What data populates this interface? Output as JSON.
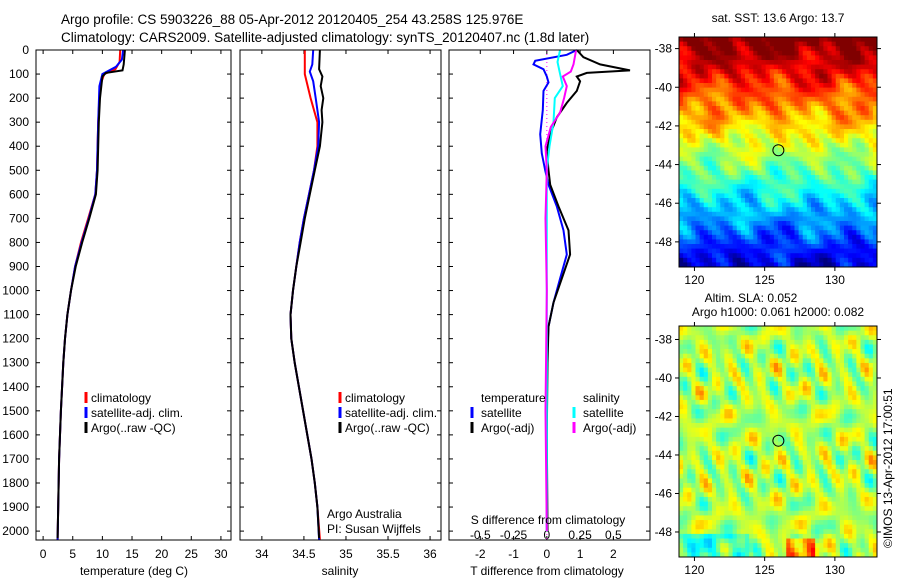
{
  "title_line1": "Argo profile: CS 5903226_88 05-Apr-2012 20120405_254 43.258S 125.976E",
  "title_line2": "Climatology: CARS2009. Satellite-adjusted climatology: synTS_20120407.nc (1.8d later)",
  "colors": {
    "climatology": "#ff0000",
    "satellite": "#0000ff",
    "argo": "#000000",
    "sal_satellite": "#00ffff",
    "sal_argo": "#ff00ff"
  },
  "chart_data": [
    {
      "type": "line",
      "xlabel": "temperature (deg C)",
      "ylabel": "",
      "xlim": [
        -1.2,
        31.7
      ],
      "ylim": [
        2037,
        0
      ],
      "xticks": [
        "0",
        "5",
        "10",
        "15",
        "20",
        "25",
        "30"
      ],
      "xtick_values": [
        0,
        5,
        10,
        15,
        20,
        25,
        30
      ],
      "yticks": [
        "0",
        "100",
        "200",
        "300",
        "400",
        "500",
        "600",
        "700",
        "800",
        "900",
        "1000",
        "1100",
        "1200",
        "1300",
        "1400",
        "1500",
        "1600",
        "1700",
        "1800",
        "1900",
        "2000"
      ],
      "legend": [
        "climatology",
        "satellite-adj. clim.",
        "Argo(..raw -QC)"
      ],
      "series": [
        {
          "name": "climatology",
          "color": "#ff0000",
          "points": [
            [
              0,
              13.0
            ],
            [
              50,
              12.9
            ],
            [
              80,
              12.2
            ],
            [
              100,
              10.3
            ],
            [
              150,
              9.6
            ],
            [
              300,
              9.3
            ],
            [
              500,
              9.1
            ],
            [
              600,
              8.8
            ],
            [
              700,
              7.6
            ],
            [
              800,
              6.4
            ],
            [
              900,
              5.4
            ],
            [
              1000,
              4.7
            ],
            [
              1100,
              4.1
            ],
            [
              1200,
              3.7
            ],
            [
              1300,
              3.4
            ],
            [
              1500,
              3.0
            ],
            [
              1700,
              2.7
            ],
            [
              1900,
              2.55
            ],
            [
              2035,
              2.45
            ]
          ]
        },
        {
          "name": "satellite-adj. clim.",
          "color": "#0000ff",
          "points": [
            [
              0,
              13.5
            ],
            [
              40,
              13.3
            ],
            [
              70,
              12.3
            ],
            [
              100,
              10.0
            ],
            [
              150,
              9.5
            ],
            [
              300,
              9.3
            ],
            [
              500,
              9.1
            ],
            [
              600,
              8.8
            ],
            [
              700,
              7.7
            ],
            [
              800,
              6.5
            ],
            [
              900,
              5.4
            ],
            [
              1000,
              4.7
            ],
            [
              1100,
              4.1
            ],
            [
              1200,
              3.7
            ],
            [
              1300,
              3.4
            ],
            [
              1500,
              3.0
            ],
            [
              1700,
              2.7
            ],
            [
              1900,
              2.55
            ],
            [
              2035,
              2.45
            ]
          ]
        },
        {
          "name": "Argo(..raw -QC)",
          "color": "#000000",
          "points": [
            [
              0,
              13.8
            ],
            [
              60,
              13.6
            ],
            [
              85,
              13.4
            ],
            [
              95,
              10.6
            ],
            [
              110,
              10.0
            ],
            [
              200,
              9.6
            ],
            [
              300,
              9.4
            ],
            [
              500,
              9.2
            ],
            [
              600,
              8.9
            ],
            [
              700,
              7.8
            ],
            [
              800,
              6.6
            ],
            [
              900,
              5.5
            ],
            [
              1000,
              4.7
            ],
            [
              1100,
              4.1
            ],
            [
              1200,
              3.7
            ],
            [
              1300,
              3.4
            ],
            [
              1500,
              3.0
            ],
            [
              1700,
              2.7
            ],
            [
              1900,
              2.55
            ],
            [
              2030,
              2.45
            ]
          ]
        }
      ]
    },
    {
      "type": "line",
      "xlabel": "salinity",
      "xlim": [
        33.74,
        36.13
      ],
      "ylim": [
        2037,
        0
      ],
      "xticks": [
        "34",
        "34.5",
        "35",
        "35.5",
        "36"
      ],
      "xtick_values": [
        34,
        34.5,
        35,
        35.5,
        36
      ],
      "legend": [
        "climatology",
        "satellite-adj. clim.",
        "Argo(..raw -QC)"
      ],
      "annotation": [
        "Argo Australia",
        "PI: Susan Wijffels"
      ],
      "series": [
        {
          "name": "climatology",
          "color": "#ff0000",
          "points": [
            [
              0,
              34.51
            ],
            [
              100,
              34.51
            ],
            [
              200,
              34.58
            ],
            [
              300,
              34.66
            ],
            [
              400,
              34.66
            ],
            [
              500,
              34.62
            ],
            [
              600,
              34.56
            ],
            [
              700,
              34.5
            ],
            [
              800,
              34.45
            ],
            [
              900,
              34.41
            ],
            [
              1000,
              34.37
            ],
            [
              1100,
              34.34
            ],
            [
              1200,
              34.35
            ],
            [
              1300,
              34.39
            ],
            [
              1400,
              34.44
            ],
            [
              1500,
              34.49
            ],
            [
              1600,
              34.54
            ],
            [
              1700,
              34.59
            ],
            [
              1800,
              34.63
            ],
            [
              1900,
              34.66
            ],
            [
              2035,
              34.69
            ]
          ]
        },
        {
          "name": "satellite-adj. clim.",
          "color": "#0000ff",
          "points": [
            [
              0,
              34.61
            ],
            [
              60,
              34.6
            ],
            [
              90,
              34.57
            ],
            [
              130,
              34.61
            ],
            [
              200,
              34.64
            ],
            [
              300,
              34.68
            ],
            [
              400,
              34.67
            ],
            [
              500,
              34.62
            ],
            [
              600,
              34.56
            ],
            [
              700,
              34.5
            ],
            [
              800,
              34.45
            ],
            [
              900,
              34.41
            ],
            [
              1000,
              34.37
            ],
            [
              1100,
              34.34
            ],
            [
              1200,
              34.35
            ],
            [
              1300,
              34.39
            ],
            [
              1400,
              34.44
            ],
            [
              1500,
              34.49
            ],
            [
              1600,
              34.54
            ],
            [
              1700,
              34.59
            ],
            [
              1800,
              34.63
            ],
            [
              1900,
              34.66
            ],
            [
              2035,
              34.68
            ]
          ]
        },
        {
          "name": "Argo(..raw -QC)",
          "color": "#000000",
          "points": [
            [
              0,
              34.69
            ],
            [
              80,
              34.68
            ],
            [
              110,
              34.72
            ],
            [
              150,
              34.7
            ],
            [
              200,
              34.73
            ],
            [
              250,
              34.71
            ],
            [
              300,
              34.72
            ],
            [
              400,
              34.69
            ],
            [
              500,
              34.63
            ],
            [
              600,
              34.57
            ],
            [
              700,
              34.51
            ],
            [
              800,
              34.46
            ],
            [
              900,
              34.41
            ],
            [
              1000,
              34.37
            ],
            [
              1100,
              34.34
            ],
            [
              1200,
              34.35
            ],
            [
              1300,
              34.39
            ],
            [
              1400,
              34.44
            ],
            [
              1500,
              34.49
            ],
            [
              1600,
              34.54
            ],
            [
              1700,
              34.59
            ],
            [
              1800,
              34.63
            ],
            [
              1900,
              34.66
            ],
            [
              2030,
              34.68
            ]
          ]
        }
      ]
    },
    {
      "type": "line",
      "xlabel": "T difference from climatology",
      "x2label": "S difference from climatology",
      "xlim": [
        -2.94,
        3.1
      ],
      "s_scale": 4,
      "ylim": [
        2037,
        0
      ],
      "xticks": [
        "-2",
        "-1",
        "0",
        "1",
        "2"
      ],
      "xtick_values": [
        -2,
        -1,
        0,
        1,
        2
      ],
      "x2ticks": [
        "-0.5",
        "-0.25",
        "0",
        "0.25",
        "0.5"
      ],
      "x2tick_values": [
        -0.5,
        -0.25,
        0,
        0.25,
        0.5
      ],
      "legend_temperature": {
        "header": "temperature",
        "items": [
          "satellite",
          "Argo(-adj)"
        ]
      },
      "legend_salinity": {
        "header": "salinity",
        "items": [
          "satellite",
          "Argo(-adj)"
        ]
      },
      "series": [
        {
          "name": "temperature satellite",
          "color": "#0000ff",
          "kind": "T",
          "points": [
            [
              0,
              0.9
            ],
            [
              20,
              0.6
            ],
            [
              45,
              -0.35
            ],
            [
              60,
              -0.4
            ],
            [
              80,
              -0.1
            ],
            [
              110,
              0.0
            ],
            [
              135,
              0.05
            ],
            [
              170,
              -0.1
            ],
            [
              250,
              -0.12
            ],
            [
              350,
              -0.2
            ],
            [
              430,
              -0.15
            ],
            [
              500,
              -0.05
            ],
            [
              560,
              0.05
            ],
            [
              650,
              0.3
            ],
            [
              750,
              0.5
            ],
            [
              850,
              0.6
            ],
            [
              950,
              0.4
            ],
            [
              1050,
              0.2
            ],
            [
              1150,
              0.05
            ],
            [
              1300,
              0.0
            ],
            [
              1600,
              0.0
            ],
            [
              2000,
              0.0
            ]
          ]
        },
        {
          "name": "temperature Argo(-adj)",
          "color": "#000000",
          "kind": "T",
          "points": [
            [
              0,
              0.9
            ],
            [
              30,
              1.1
            ],
            [
              60,
              1.6
            ],
            [
              85,
              2.5
            ],
            [
              95,
              1.2
            ],
            [
              110,
              0.9
            ],
            [
              130,
              1.0
            ],
            [
              170,
              0.9
            ],
            [
              220,
              0.6
            ],
            [
              280,
              0.3
            ],
            [
              350,
              0.1
            ],
            [
              420,
              0.0
            ],
            [
              500,
              0.05
            ],
            [
              560,
              0.1
            ],
            [
              650,
              0.35
            ],
            [
              750,
              0.65
            ],
            [
              850,
              0.7
            ],
            [
              950,
              0.45
            ],
            [
              1050,
              0.2
            ],
            [
              1150,
              0.05
            ],
            [
              1300,
              0.02
            ],
            [
              1600,
              0.0
            ],
            [
              2000,
              0.02
            ]
          ]
        },
        {
          "name": "salinity satellite",
          "color": "#00ffff",
          "kind": "S",
          "points": [
            [
              0,
              0.1
            ],
            [
              50,
              0.08
            ],
            [
              100,
              0.1
            ],
            [
              150,
              0.12
            ],
            [
              200,
              0.06
            ],
            [
              300,
              0.05
            ],
            [
              400,
              0.02
            ],
            [
              500,
              0.0
            ],
            [
              700,
              0.0
            ],
            [
              1000,
              0.0
            ],
            [
              1500,
              0.0
            ],
            [
              2000,
              0.0
            ]
          ]
        },
        {
          "name": "salinity Argo(-adj)",
          "color": "#ff00ff",
          "kind": "S",
          "points": [
            [
              0,
              0.22
            ],
            [
              60,
              0.2
            ],
            [
              90,
              0.18
            ],
            [
              110,
              0.12
            ],
            [
              150,
              0.15
            ],
            [
              200,
              0.13
            ],
            [
              260,
              0.1
            ],
            [
              320,
              0.03
            ],
            [
              400,
              -0.01
            ],
            [
              500,
              0.0
            ],
            [
              700,
              -0.01
            ],
            [
              1000,
              0.0
            ],
            [
              1500,
              -0.01
            ],
            [
              2000,
              0.0
            ]
          ]
        }
      ]
    },
    {
      "type": "heatmap",
      "title": "sat. SST: 13.6 Argo: 13.7",
      "field": "sea surface temperature",
      "xlim": [
        118.9,
        133.0
      ],
      "ylim": [
        -49.3,
        -37.4
      ],
      "xticks": [
        "120",
        "125",
        "130"
      ],
      "xtick_values": [
        120,
        125,
        130
      ],
      "yticks": [
        "-38",
        "-40",
        "-42",
        "-44",
        "-46",
        "-48"
      ],
      "ytick_values": [
        -38,
        -40,
        -42,
        -44,
        -46,
        -48
      ],
      "marker": {
        "lon": 125.976,
        "lat": -43.258
      }
    },
    {
      "type": "heatmap",
      "title_line1": "Altim. SLA: 0.052",
      "title_line2": "Argo h1000: 0.061 h2000: 0.082",
      "field": "sea level anomaly",
      "xlim": [
        118.9,
        133.0
      ],
      "ylim": [
        -49.3,
        -37.3
      ],
      "xticks": [
        "120",
        "125",
        "130"
      ],
      "xtick_values": [
        120,
        125,
        130
      ],
      "yticks": [
        "-38",
        "-40",
        "-42",
        "-44",
        "-46",
        "-48"
      ],
      "ytick_values": [
        -38,
        -40,
        -42,
        -44,
        -46,
        -48
      ],
      "marker": {
        "lon": 125.976,
        "lat": -43.258
      }
    }
  ],
  "credit": "©IMOS 13-Apr-2012 17:00:51"
}
